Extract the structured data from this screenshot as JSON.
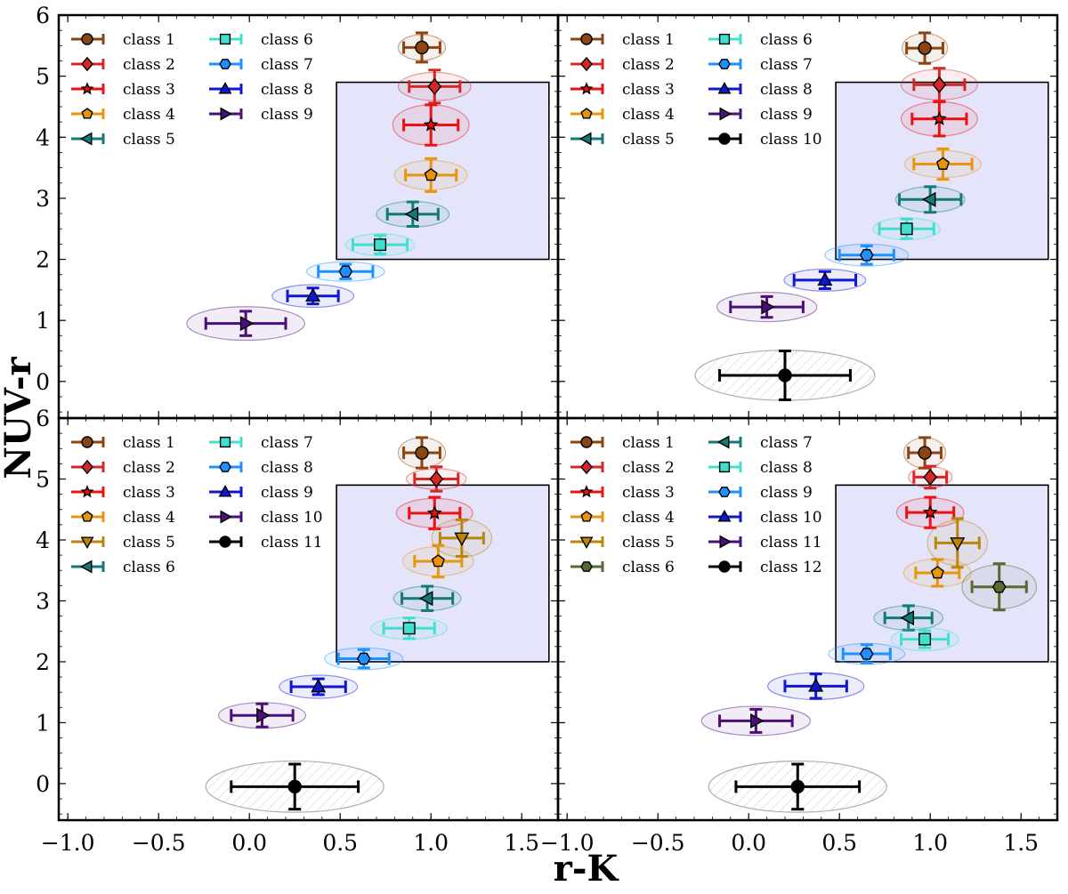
{
  "figure": {
    "ylabel": "NUV-r",
    "xlabel": "r-K"
  },
  "chart_data": {
    "type": "scatter",
    "xlim": [
      -1.05,
      1.7
    ],
    "ylim": [
      -0.6,
      6.0
    ],
    "xticks": [
      -1.0,
      -0.5,
      0.0,
      0.5,
      1.0,
      1.5
    ],
    "xtick_labels": [
      "−1.0",
      "−0.5",
      "0.0",
      "0.5",
      "1.0",
      "1.5"
    ],
    "yticks": [
      0,
      1,
      2,
      3,
      4,
      5,
      6
    ],
    "ytick_labels": [
      "0",
      "1",
      "2",
      "3",
      "4",
      "5",
      "6"
    ],
    "selection_box": {
      "x": [
        0.48,
        1.65
      ],
      "y": [
        2.0,
        4.9
      ],
      "color": "#e4e4fb"
    },
    "panels": [
      {
        "id": "top-left",
        "points": [
          {
            "label": "class 1",
            "marker": "circle",
            "color": "#8B4513",
            "x": 0.95,
            "y": 5.47,
            "xerr": 0.1,
            "yerr": 0.24,
            "ew": 0.26,
            "eh": 0.42
          },
          {
            "label": "class 2",
            "marker": "diamond",
            "color": "#d62728",
            "x": 1.02,
            "y": 4.83,
            "xerr": 0.14,
            "yerr": 0.27,
            "ew": 0.4,
            "eh": 0.46
          },
          {
            "label": "class 3",
            "marker": "star",
            "color": "#ee1111",
            "x": 1.0,
            "y": 4.2,
            "xerr": 0.15,
            "yerr": 0.33,
            "ew": 0.42,
            "eh": 0.66
          },
          {
            "label": "class 4",
            "marker": "pentagon",
            "color": "#e8950c",
            "x": 1.0,
            "y": 3.38,
            "xerr": 0.14,
            "yerr": 0.27,
            "ew": 0.4,
            "eh": 0.48
          },
          {
            "label": "class 5",
            "marker": "triangle-left",
            "color": "#127a78",
            "x": 0.9,
            "y": 2.74,
            "xerr": 0.14,
            "yerr": 0.2,
            "ew": 0.4,
            "eh": 0.42
          },
          {
            "label": "class 6",
            "marker": "square",
            "color": "#40e0d0",
            "x": 0.72,
            "y": 2.24,
            "xerr": 0.15,
            "yerr": 0.15,
            "ew": 0.38,
            "eh": 0.36
          },
          {
            "label": "class 7",
            "marker": "hexagon",
            "color": "#1e90ff",
            "x": 0.53,
            "y": 1.8,
            "xerr": 0.15,
            "yerr": 0.12,
            "ew": 0.43,
            "eh": 0.32
          },
          {
            "label": "class 8",
            "marker": "triangle-up",
            "color": "#0f17d0",
            "x": 0.35,
            "y": 1.4,
            "xerr": 0.14,
            "yerr": 0.13,
            "ew": 0.45,
            "eh": 0.37
          },
          {
            "label": "class 9",
            "marker": "triangle-right",
            "color": "#4b0f7a",
            "x": -0.02,
            "y": 0.95,
            "xerr": 0.22,
            "yerr": 0.2,
            "ew": 0.65,
            "eh": 0.55
          }
        ]
      },
      {
        "id": "top-right",
        "points": [
          {
            "label": "class 1",
            "marker": "circle",
            "color": "#8B4513",
            "x": 0.97,
            "y": 5.46,
            "xerr": 0.1,
            "yerr": 0.25,
            "ew": 0.25,
            "eh": 0.48
          },
          {
            "label": "class 2",
            "marker": "diamond",
            "color": "#d62728",
            "x": 1.05,
            "y": 4.86,
            "xerr": 0.14,
            "yerr": 0.27,
            "ew": 0.42,
            "eh": 0.5
          },
          {
            "label": "class 3",
            "marker": "star",
            "color": "#ee1111",
            "x": 1.05,
            "y": 4.3,
            "xerr": 0.15,
            "yerr": 0.28,
            "ew": 0.42,
            "eh": 0.56
          },
          {
            "label": "class 4",
            "marker": "pentagon",
            "color": "#e8950c",
            "x": 1.07,
            "y": 3.56,
            "xerr": 0.16,
            "yerr": 0.25,
            "ew": 0.42,
            "eh": 0.44
          },
          {
            "label": "class 5",
            "marker": "triangle-left",
            "color": "#127a78",
            "x": 1.0,
            "y": 2.98,
            "xerr": 0.17,
            "yerr": 0.21,
            "ew": 0.38,
            "eh": 0.42
          },
          {
            "label": "class 6",
            "marker": "square",
            "color": "#40e0d0",
            "x": 0.87,
            "y": 2.5,
            "xerr": 0.15,
            "yerr": 0.16,
            "ew": 0.37,
            "eh": 0.36
          },
          {
            "label": "class 7",
            "marker": "hexagon",
            "color": "#1e90ff",
            "x": 0.65,
            "y": 2.07,
            "xerr": 0.15,
            "yerr": 0.15,
            "ew": 0.46,
            "eh": 0.36
          },
          {
            "label": "class 8",
            "marker": "triangle-up",
            "color": "#0f17d0",
            "x": 0.42,
            "y": 1.66,
            "xerr": 0.17,
            "yerr": 0.14,
            "ew": 0.45,
            "eh": 0.36
          },
          {
            "label": "class 9",
            "marker": "triangle-right",
            "color": "#4b0f7a",
            "x": 0.1,
            "y": 1.22,
            "xerr": 0.2,
            "yerr": 0.17,
            "ew": 0.55,
            "eh": 0.48
          },
          {
            "label": "class 10",
            "marker": "circle",
            "color": "#000000",
            "x": 0.2,
            "y": 0.1,
            "xerr": 0.36,
            "yerr": 0.4,
            "ew": 0.99,
            "eh": 0.82,
            "hatched": true
          }
        ]
      },
      {
        "id": "bottom-left",
        "points": [
          {
            "label": "class 1",
            "marker": "circle",
            "color": "#8B4513",
            "x": 0.95,
            "y": 5.43,
            "xerr": 0.1,
            "yerr": 0.25,
            "ew": 0.26,
            "eh": 0.5
          },
          {
            "label": "class 2",
            "marker": "diamond",
            "color": "#d62728",
            "x": 1.03,
            "y": 5.0,
            "xerr": 0.12,
            "yerr": 0.2,
            "ew": 0.33,
            "eh": 0.34
          },
          {
            "label": "class 3",
            "marker": "star",
            "color": "#ee1111",
            "x": 1.02,
            "y": 4.44,
            "xerr": 0.14,
            "yerr": 0.26,
            "ew": 0.42,
            "eh": 0.48
          },
          {
            "label": "class 4",
            "marker": "pentagon",
            "color": "#e8950c",
            "x": 1.04,
            "y": 3.65,
            "xerr": 0.13,
            "yerr": 0.26,
            "ew": 0.39,
            "eh": 0.48
          },
          {
            "label": "class 5",
            "marker": "triangle-down",
            "color": "#b8860b",
            "x": 1.17,
            "y": 4.03,
            "xerr": 0.12,
            "yerr": 0.3,
            "ew": 0.33,
            "eh": 0.62
          },
          {
            "label": "class 6",
            "marker": "triangle-left",
            "color": "#127a78",
            "x": 0.98,
            "y": 3.04,
            "xerr": 0.14,
            "yerr": 0.2,
            "ew": 0.37,
            "eh": 0.4
          },
          {
            "label": "class 7",
            "marker": "square",
            "color": "#40e0d0",
            "x": 0.88,
            "y": 2.55,
            "xerr": 0.14,
            "yerr": 0.17,
            "ew": 0.42,
            "eh": 0.36
          },
          {
            "label": "class 8",
            "marker": "hexagon",
            "color": "#1e90ff",
            "x": 0.63,
            "y": 2.05,
            "xerr": 0.14,
            "yerr": 0.15,
            "ew": 0.43,
            "eh": 0.36
          },
          {
            "label": "class 9",
            "marker": "triangle-up",
            "color": "#0f17d0",
            "x": 0.38,
            "y": 1.59,
            "xerr": 0.15,
            "yerr": 0.13,
            "ew": 0.43,
            "eh": 0.38
          },
          {
            "label": "class 10",
            "marker": "triangle-right",
            "color": "#4b0f7a",
            "x": 0.07,
            "y": 1.12,
            "xerr": 0.17,
            "yerr": 0.19,
            "ew": 0.48,
            "eh": 0.42
          },
          {
            "label": "class 11",
            "marker": "circle",
            "color": "#000000",
            "x": 0.25,
            "y": -0.05,
            "xerr": 0.35,
            "yerr": 0.37,
            "ew": 0.98,
            "eh": 0.84,
            "hatched": true
          }
        ]
      },
      {
        "id": "bottom-right",
        "points": [
          {
            "label": "class 1",
            "marker": "circle",
            "color": "#8B4513",
            "x": 0.97,
            "y": 5.43,
            "xerr": 0.09,
            "yerr": 0.25,
            "ew": 0.23,
            "eh": 0.5
          },
          {
            "label": "class 2",
            "marker": "diamond",
            "color": "#d62728",
            "x": 1.0,
            "y": 5.03,
            "xerr": 0.09,
            "yerr": 0.18,
            "ew": 0.24,
            "eh": 0.34
          },
          {
            "label": "class 3",
            "marker": "star",
            "color": "#ee1111",
            "x": 1.0,
            "y": 4.45,
            "xerr": 0.13,
            "yerr": 0.25,
            "ew": 0.37,
            "eh": 0.48
          },
          {
            "label": "class 4",
            "marker": "pentagon",
            "color": "#e8950c",
            "x": 1.04,
            "y": 3.46,
            "xerr": 0.12,
            "yerr": 0.22,
            "ew": 0.37,
            "eh": 0.46
          },
          {
            "label": "class 5",
            "marker": "triangle-down",
            "color": "#b8860b",
            "x": 1.15,
            "y": 3.95,
            "xerr": 0.12,
            "yerr": 0.4,
            "ew": 0.33,
            "eh": 0.74
          },
          {
            "label": "class 6",
            "marker": "hexagon",
            "color": "#556b2f",
            "x": 1.38,
            "y": 3.23,
            "xerr": 0.15,
            "yerr": 0.38,
            "ew": 0.41,
            "eh": 0.72
          },
          {
            "label": "class 7",
            "marker": "triangle-left",
            "color": "#127a78",
            "x": 0.88,
            "y": 2.72,
            "xerr": 0.13,
            "yerr": 0.2,
            "ew": 0.38,
            "eh": 0.4
          },
          {
            "label": "class 8",
            "marker": "square",
            "color": "#40e0d0",
            "x": 0.97,
            "y": 2.37,
            "xerr": 0.13,
            "yerr": 0.14,
            "ew": 0.37,
            "eh": 0.38
          },
          {
            "label": "class 9",
            "marker": "hexagon",
            "color": "#1e90ff",
            "x": 0.65,
            "y": 2.13,
            "xerr": 0.13,
            "yerr": 0.15,
            "ew": 0.42,
            "eh": 0.34
          },
          {
            "label": "class 10",
            "marker": "triangle-up",
            "color": "#0f17d0",
            "x": 0.37,
            "y": 1.6,
            "xerr": 0.17,
            "yerr": 0.2,
            "ew": 0.53,
            "eh": 0.44
          },
          {
            "label": "class 11",
            "marker": "triangle-right",
            "color": "#4b0f7a",
            "x": 0.04,
            "y": 1.03,
            "xerr": 0.2,
            "yerr": 0.19,
            "ew": 0.6,
            "eh": 0.48
          },
          {
            "label": "class 12",
            "marker": "circle",
            "color": "#000000",
            "x": 0.27,
            "y": -0.05,
            "xerr": 0.34,
            "yerr": 0.37,
            "ew": 0.98,
            "eh": 0.84,
            "hatched": true
          }
        ]
      }
    ]
  }
}
